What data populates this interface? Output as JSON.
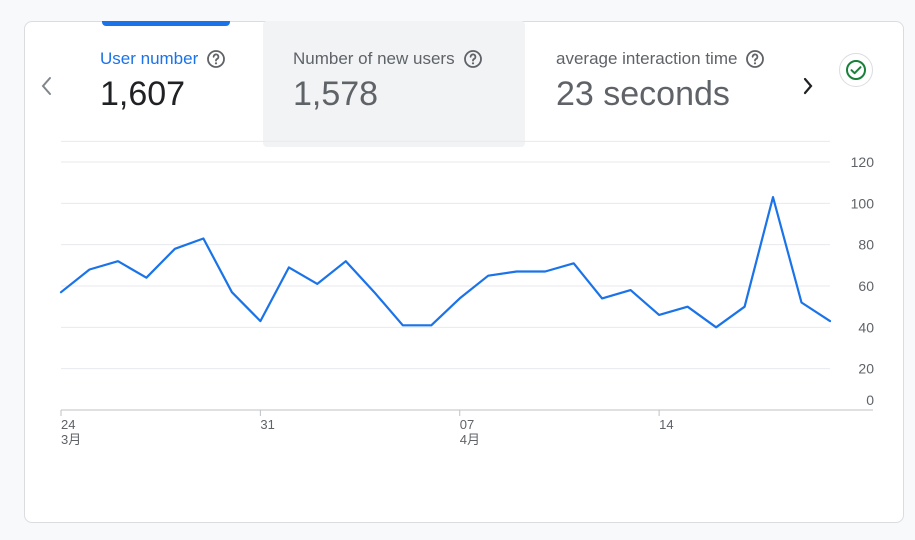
{
  "tabs": [
    {
      "label": "User number",
      "value": "1,607",
      "selected": true
    },
    {
      "label": "Number of new users",
      "value": "1,578",
      "selected": false
    },
    {
      "label": "average interaction time",
      "value": "23 seconds",
      "selected": false
    }
  ],
  "colors": {
    "accent": "#1a73e8",
    "line": "#1a73e8",
    "status_ok": "#188038"
  },
  "icons": {
    "prev": "chevron-left-icon",
    "next": "chevron-right-icon",
    "help": "help-circle-icon",
    "status": "check-circle-icon"
  },
  "chart_data": {
    "type": "line",
    "title": "",
    "xlabel": "",
    "ylabel": "",
    "ylim": [
      0,
      120
    ],
    "yticks": [
      0,
      20,
      40,
      60,
      80,
      100,
      120
    ],
    "grid": true,
    "x_tick_labels": [
      {
        "index": 0,
        "label": "24",
        "sublabel": "3月"
      },
      {
        "index": 7,
        "label": "31",
        "sublabel": ""
      },
      {
        "index": 14,
        "label": "07",
        "sublabel": "4月"
      },
      {
        "index": 21,
        "label": "14",
        "sublabel": ""
      }
    ],
    "series": [
      {
        "values": [
          57,
          68,
          72,
          64,
          78,
          83,
          57,
          43,
          69,
          61,
          72,
          57,
          41,
          41,
          54,
          65,
          67,
          67,
          71,
          54,
          58,
          46,
          50,
          40,
          50,
          103,
          52,
          43
        ]
      }
    ]
  }
}
